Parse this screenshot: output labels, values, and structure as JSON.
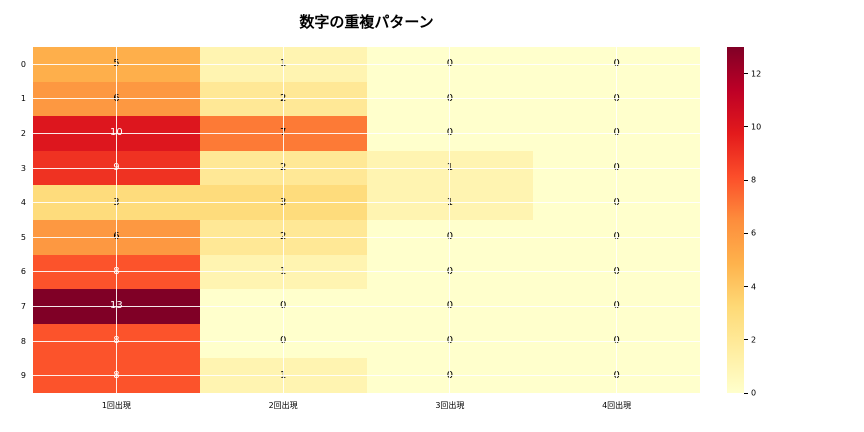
{
  "title": "数字の重複パターン",
  "chart_data": {
    "type": "heatmap",
    "title": "数字の重複パターン",
    "rows": [
      "0",
      "1",
      "2",
      "3",
      "4",
      "5",
      "6",
      "7",
      "8",
      "9"
    ],
    "columns": [
      "1回出現",
      "2回出現",
      "3回出現",
      "4回出現"
    ],
    "values": [
      [
        5,
        1,
        0,
        0
      ],
      [
        6,
        2,
        0,
        0
      ],
      [
        10,
        7,
        0,
        0
      ],
      [
        9,
        2,
        1,
        0
      ],
      [
        3,
        3,
        1,
        0
      ],
      [
        6,
        2,
        0,
        0
      ],
      [
        8,
        1,
        0,
        0
      ],
      [
        13,
        0,
        0,
        0
      ],
      [
        8,
        0,
        0,
        0
      ],
      [
        8,
        1,
        0,
        0
      ]
    ],
    "vmin": 0,
    "vmax": 13,
    "colormap": "YlOrRd",
    "colorbar_ticks": [
      0,
      2,
      4,
      6,
      8,
      10,
      12
    ],
    "grid": true,
    "annotated": true,
    "legend_position": "right-colorbar"
  },
  "colors": {
    "background": "#ffffff",
    "grid": "#ffffff",
    "annotation_dark": "#000000",
    "annotation_light": "#ffffff",
    "colormap_min": "#ffffcc",
    "colormap_max": "#800026"
  }
}
